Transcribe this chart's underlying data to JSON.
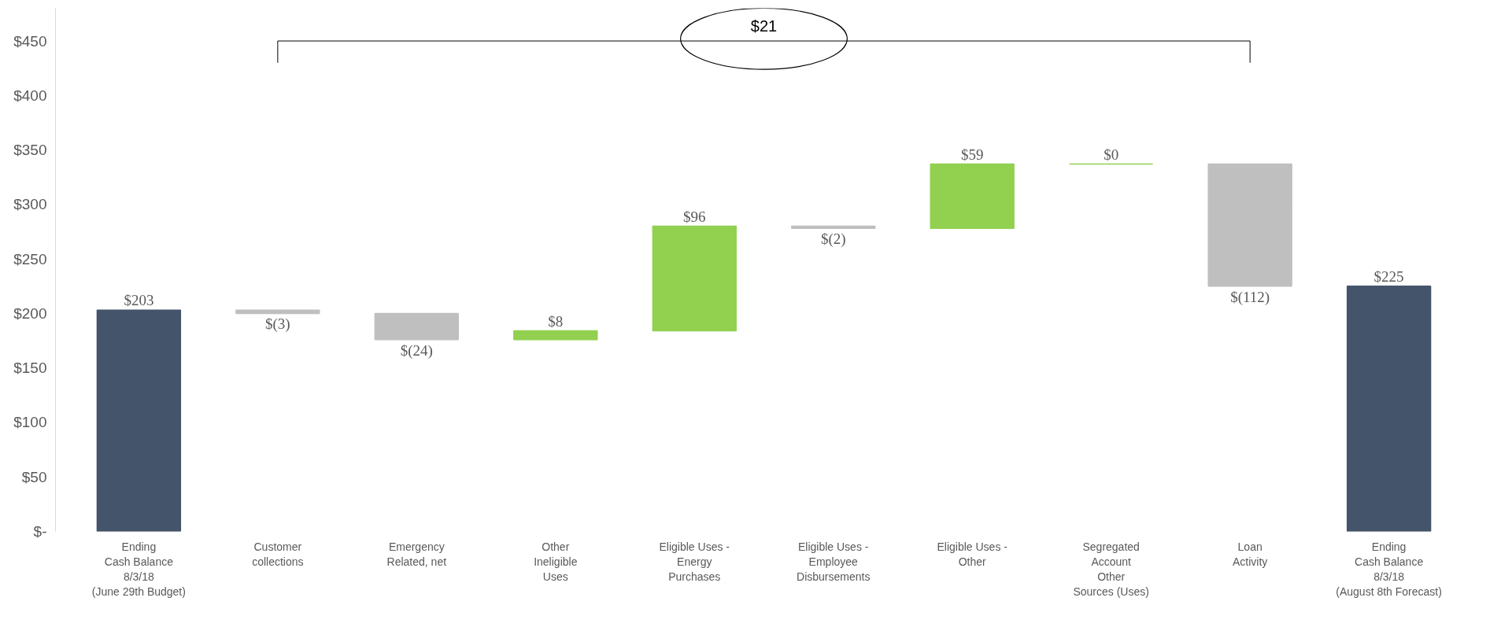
{
  "chart_data": {
    "type": "bar",
    "categories": [
      "Ending\nCash Balance\n8/3/18\n(June 29th Budget)",
      "Customer\ncollections",
      "Emergency\nRelated, net",
      "Other\nIneligible\nUses",
      "Eligible Uses -\nEnergy\nPurchases",
      "Eligible Uses -\nEmployee\nDisbursements",
      "Eligible Uses -\nOther",
      "Segregated\nAccount\nOther\nSources (Uses)",
      "Loan\nActivity",
      "Ending\nCash Balance\n8/3/18\n(August 8th Forecast)"
    ],
    "values": [
      203,
      -3,
      -24,
      8,
      96,
      -2,
      59,
      0,
      -112,
      225
    ],
    "base": [
      0,
      203,
      200,
      176,
      184,
      280,
      278,
      337,
      337,
      0
    ],
    "colors": [
      "#44546a",
      "#bfbfbf",
      "#bfbfbf",
      "#92d050",
      "#92d050",
      "#bfbfbf",
      "#92d050",
      "#92d050",
      "#bfbfbf",
      "#44546a"
    ],
    "value_labels": [
      "$203",
      "$(3)",
      "$(24)",
      "$8",
      "$96",
      "$(2)",
      "$59",
      "$0",
      "$(112)",
      "$225"
    ],
    "ylim": [
      0,
      480
    ],
    "yticks": [
      {
        "value": 0,
        "label": "$-"
      },
      {
        "value": 50,
        "label": "$50"
      },
      {
        "value": 100,
        "label": "$100"
      },
      {
        "value": 150,
        "label": "$150"
      },
      {
        "value": 200,
        "label": "$200"
      },
      {
        "value": 250,
        "label": "$250"
      },
      {
        "value": 300,
        "label": "$300"
      },
      {
        "value": 350,
        "label": "$350"
      },
      {
        "value": 400,
        "label": "$400"
      },
      {
        "value": 450,
        "label": "$450"
      }
    ],
    "grid": false,
    "annotations": [
      "$21"
    ]
  }
}
